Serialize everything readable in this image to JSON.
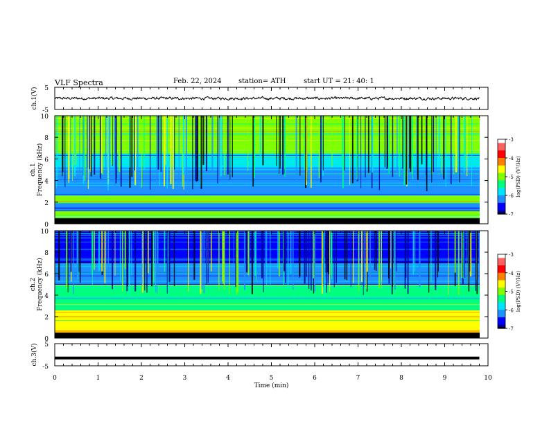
{
  "header": {
    "title": "VLF  Spectra",
    "date": "Feb. 22, 2024",
    "station": "station= ATH",
    "start": "start  UT  =   21: 40: 1"
  },
  "colors": {
    "spectrogram_scale": [
      "#000000",
      "#00008b",
      "#0000ff",
      "#1e90ff",
      "#00e5ff",
      "#00ff7f",
      "#7fff00",
      "#ffff00",
      "#ff7f00",
      "#ff0000",
      "#ff6060",
      "#ffffff"
    ],
    "waveform": "#000000"
  },
  "chart_data": [
    {
      "type": "line",
      "panel": "ch1-waveform",
      "ylabel": "ch.1(V)",
      "ylim": [
        -5,
        5
      ],
      "y_tick_labels": [
        "5",
        "-5"
      ],
      "x_range_min": [
        0,
        9.8
      ],
      "series": [
        {
          "values_approx": "noise around 0 V, amplitude about ±0.5 V"
        }
      ]
    },
    {
      "type": "heatmap",
      "panel": "ch1-spectrogram",
      "ylabel_line1": "ch.1",
      "ylabel_line2": "Frequency  (kHz)",
      "ylim": [
        0,
        10
      ],
      "y_tick_labels": [
        "0",
        "2",
        "4",
        "6",
        "8",
        "10"
      ],
      "colorbar": {
        "label": "log(PSD) (V²/Hz)",
        "range": [
          -7,
          -3
        ],
        "tick_labels": [
          "-3",
          "-4",
          "-5",
          "-6",
          "-7"
        ]
      },
      "dominant_psd_by_band_khz": [
        {
          "band": [
            0,
            0.5
          ],
          "log_psd": -7
        },
        {
          "band": [
            0.5,
            1.2
          ],
          "log_psd": -5.2
        },
        {
          "band": [
            1.2,
            1.9
          ],
          "log_psd": -6.2
        },
        {
          "band": [
            1.9,
            2.6
          ],
          "log_psd": -5.0
        },
        {
          "band": [
            2.6,
            5.2
          ],
          "log_psd": -6.1
        },
        {
          "band": [
            5.2,
            6.5
          ],
          "log_psd": -5.7
        },
        {
          "band": [
            6.5,
            10
          ],
          "log_psd": -5.0
        }
      ]
    },
    {
      "type": "heatmap",
      "panel": "ch2-spectrogram",
      "ylabel_line1": "ch.2",
      "ylabel_line2": "Frequency  (kHz)",
      "ylim": [
        0,
        10
      ],
      "y_tick_labels": [
        "0",
        "2",
        "4",
        "6",
        "8",
        "10"
      ],
      "colorbar": {
        "label": "log(PSD) (V²/Hz)",
        "range": [
          -7,
          -3
        ],
        "tick_labels": [
          "-3",
          "-4",
          "-5",
          "-6",
          "-7"
        ]
      },
      "dominant_psd_by_band_khz": [
        {
          "band": [
            0,
            0.5
          ],
          "log_psd": -7
        },
        {
          "band": [
            0.5,
            2.6
          ],
          "log_psd": -4.8
        },
        {
          "band": [
            2.6,
            5.0
          ],
          "log_psd": -5.3
        },
        {
          "band": [
            5.0,
            7.0
          ],
          "log_psd": -6.1
        },
        {
          "band": [
            7.0,
            10
          ],
          "log_psd": -6.4
        }
      ]
    },
    {
      "type": "line",
      "panel": "ch3-waveform",
      "ylabel": "ch.3(V)",
      "ylim": [
        -5,
        5
      ],
      "y_tick_labels": [
        "5",
        "-5"
      ],
      "series": [
        {
          "values_approx": "flat at about -1.5 V"
        }
      ]
    }
  ],
  "x_axis": {
    "label": "Time  (min)",
    "range": [
      0,
      10
    ],
    "tick_labels": [
      "0",
      "1",
      "2",
      "3",
      "4",
      "5",
      "6",
      "7",
      "8",
      "9",
      "10"
    ]
  }
}
